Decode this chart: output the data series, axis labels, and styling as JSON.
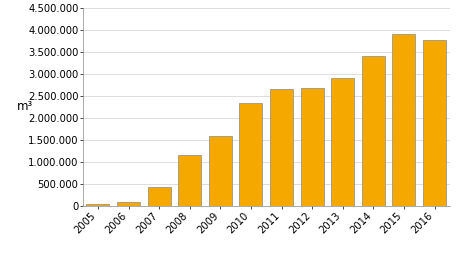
{
  "years": [
    "2005",
    "2006",
    "2007",
    "2008",
    "2009",
    "2010",
    "2011",
    "2012",
    "2013",
    "2014",
    "2015",
    "2016"
  ],
  "values": [
    40000,
    90000,
    420000,
    1150000,
    1600000,
    2350000,
    2650000,
    2680000,
    2900000,
    3400000,
    3900000,
    3780000
  ],
  "bar_color": "#F5A800",
  "bar_edge_color": "#888888",
  "ylabel": "m³",
  "ylim": [
    0,
    4500000
  ],
  "ytick_step": 500000,
  "background_color": "#ffffff",
  "grid_color": "#d0d0d0",
  "tick_fontsize": 7.2,
  "ylabel_fontsize": 8.5
}
